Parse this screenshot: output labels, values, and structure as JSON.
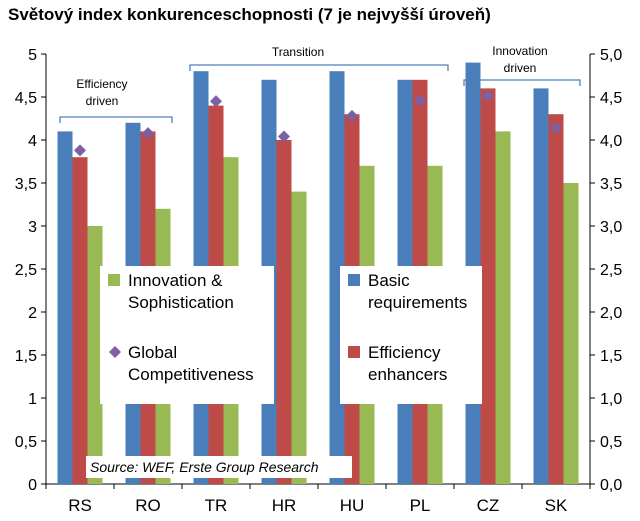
{
  "title": "Světový index konkurenceschopnosti (7 je nejvyšší úroveň)",
  "chart_data": {
    "type": "bar",
    "title": "Světový index konkurenceschopnosti (7 je nejvyšší úroveň)",
    "categories": [
      "RS",
      "RO",
      "TR",
      "HR",
      "HU",
      "PL",
      "CZ",
      "SK"
    ],
    "ylim": [
      0,
      5
    ],
    "yticks_left": [
      "0",
      "0,5",
      "1",
      "1,5",
      "2",
      "2,5",
      "3",
      "3,5",
      "4",
      "4,5",
      "5"
    ],
    "yticks_right": [
      "0,0",
      "0,5",
      "1,0",
      "1,5",
      "2,0",
      "2,5",
      "3,0",
      "3,5",
      "4,0",
      "4,5",
      "5,0"
    ],
    "series": [
      {
        "name": "Basic requirements",
        "type": "bar",
        "color": "#4a7ebb",
        "values": [
          4.1,
          4.2,
          4.8,
          4.7,
          4.8,
          4.7,
          4.9,
          4.6
        ]
      },
      {
        "name": "Efficiency enhancers",
        "type": "bar",
        "color": "#be4b48",
        "values": [
          3.8,
          4.1,
          4.4,
          4.0,
          4.3,
          4.7,
          4.6,
          4.3
        ]
      },
      {
        "name": "Innovation & Sophistication",
        "type": "bar",
        "color": "#98b954",
        "values": [
          3.0,
          3.2,
          3.8,
          3.4,
          3.7,
          3.7,
          4.1,
          3.5
        ]
      },
      {
        "name": "Global Competitiveness",
        "type": "marker",
        "color": "#7d60a0",
        "values": [
          3.88,
          4.08,
          4.45,
          4.04,
          4.28,
          4.46,
          4.51,
          4.14
        ]
      }
    ],
    "groups": [
      {
        "label_lines": [
          "Efficiency",
          "driven"
        ],
        "from": "RS",
        "to": "RO"
      },
      {
        "label_lines": [
          "Transition"
        ],
        "from": "TR",
        "to": "PL"
      },
      {
        "label_lines": [
          "Innovation",
          "driven"
        ],
        "from": "CZ",
        "to": "SK"
      }
    ],
    "legend_left": [
      {
        "series": 2,
        "lines": [
          "Innovation &",
          "Sophistication"
        ]
      },
      {
        "series": 3,
        "lines": [
          "Global",
          "Competitiveness"
        ]
      }
    ],
    "legend_right": [
      {
        "series": 0,
        "lines": [
          "Basic",
          "requirements"
        ]
      },
      {
        "series": 1,
        "lines": [
          "Efficiency",
          "enhancers"
        ]
      }
    ],
    "source": "Source: WEF, Erste Group Research"
  }
}
